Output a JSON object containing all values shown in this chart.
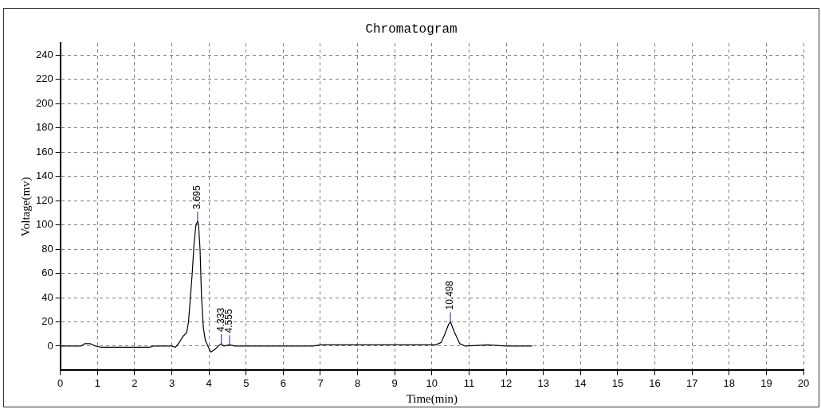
{
  "chart_data": {
    "type": "line",
    "title": "Chromatogram",
    "xlabel": "Time(min)",
    "ylabel": "Voltage(mv)",
    "xlim": [
      0,
      20
    ],
    "xticks": [
      0,
      1,
      2,
      3,
      4,
      5,
      6,
      7,
      8,
      9,
      10,
      11,
      12,
      13,
      14,
      15,
      16,
      17,
      18,
      19,
      20
    ],
    "ylim": [
      -20,
      250
    ],
    "yticks": [
      0,
      20,
      40,
      60,
      80,
      100,
      120,
      140,
      160,
      180,
      200,
      220,
      240
    ],
    "grid": true,
    "legend": false,
    "marker": "none",
    "line_style": "solid",
    "series": [
      {
        "color": "#000000",
        "x": [
          0,
          0.55,
          0.65,
          0.8,
          0.95,
          1.1,
          2.4,
          2.5,
          3.0,
          3.1,
          3.2,
          3.3,
          3.4,
          3.45,
          3.5,
          3.55,
          3.6,
          3.65,
          3.695,
          3.72,
          3.76,
          3.8,
          3.85,
          3.9,
          4.0,
          4.05,
          4.15,
          4.25,
          4.333,
          4.4,
          4.555,
          4.7,
          6.8,
          7,
          9,
          10.1,
          10.25,
          10.35,
          10.45,
          10.498,
          10.6,
          10.75,
          10.9,
          11.5,
          12,
          12.7
        ],
        "values": [
          0,
          0,
          2,
          2,
          0,
          -1,
          -1,
          0,
          0,
          -1,
          3,
          8,
          11,
          20,
          40,
          60,
          85,
          100,
          103,
          100,
          80,
          40,
          15,
          5,
          -2,
          -5,
          -3,
          0,
          2,
          0,
          1,
          0,
          0,
          1,
          1,
          1,
          3,
          10,
          18,
          20,
          12,
          2,
          0,
          1,
          0,
          0
        ]
      }
    ],
    "annotations": [
      {
        "text": "3.695",
        "x": 3.695,
        "y": 103
      },
      {
        "text": "4.333",
        "x": 4.333,
        "y": 2
      },
      {
        "text": "4.555",
        "x": 4.555,
        "y": 1
      },
      {
        "text": "10.498",
        "x": 10.498,
        "y": 20
      }
    ]
  }
}
